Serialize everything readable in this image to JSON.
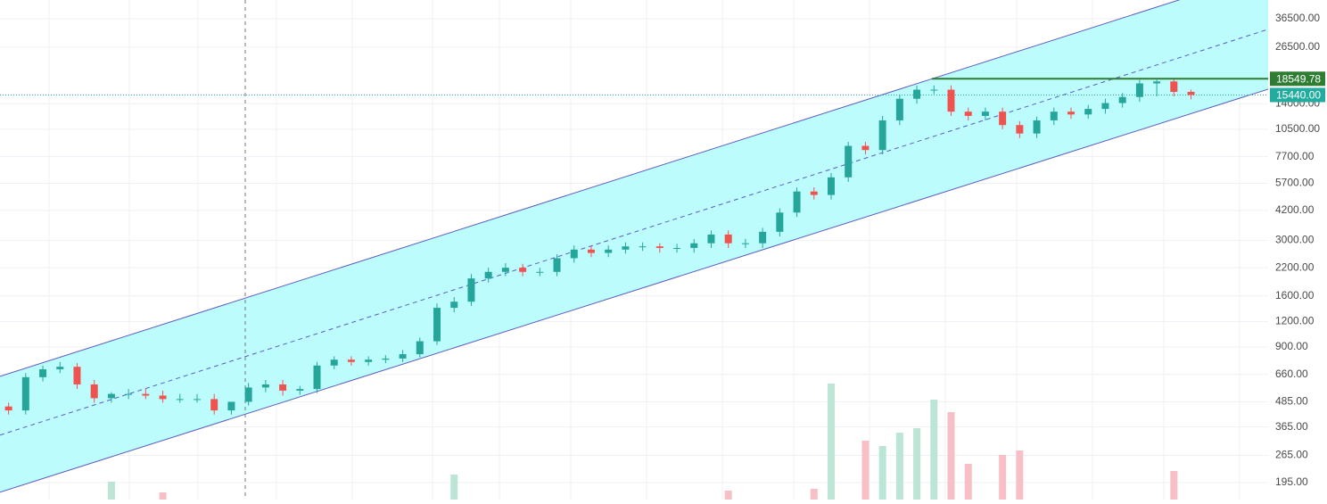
{
  "chart_data": {
    "type": "candlestick",
    "log_y": true,
    "grid": true,
    "xlim": [
      -0.5,
      73.5
    ],
    "ylim": [
      161,
      45100
    ],
    "yticks": [
      {
        "value": 36500,
        "label": "36500.00"
      },
      {
        "value": 26500,
        "label": "26500.00"
      },
      {
        "value": 14000,
        "label": "14000.00"
      },
      {
        "value": 10500,
        "label": "10500.00"
      },
      {
        "value": 7700,
        "label": "7700.00"
      },
      {
        "value": 5700,
        "label": "5700.00"
      },
      {
        "value": 4200,
        "label": "4200.00"
      },
      {
        "value": 3000,
        "label": "3000.00"
      },
      {
        "value": 2200,
        "label": "2200.00"
      },
      {
        "value": 1600,
        "label": "1600.00"
      },
      {
        "value": 1200,
        "label": "1200.00"
      },
      {
        "value": 900,
        "label": "900.00"
      },
      {
        "value": 660,
        "label": "660.00"
      },
      {
        "value": 485,
        "label": "485.00"
      },
      {
        "value": 365,
        "label": "365.00"
      },
      {
        "value": 265,
        "label": "265.00"
      },
      {
        "value": 195,
        "label": "195.00"
      }
    ],
    "up_color": "#26a69a",
    "down_color": "#ef5350",
    "open": [
      460,
      440,
      640,
      700,
      720,
      590,
      505,
      530,
      530,
      520,
      500,
      500,
      500,
      440,
      485,
      570,
      590,
      550,
      560,
      730,
      780,
      760,
      780,
      790,
      830,
      960,
      1400,
      1500,
      1950,
      2100,
      2200,
      2100,
      2100,
      2450,
      2700,
      2600,
      2700,
      2800,
      2800,
      2750,
      2750,
      2900,
      3200,
      2900,
      2900,
      3300,
      4100,
      5200,
      5000,
      6100,
      8700,
      8300,
      11600,
      14800,
      16400,
      16400,
      12800,
      12200,
      12800,
      11000,
      10000,
      11600,
      12800,
      12400,
      13200,
      14100,
      15100,
      17600,
      18000,
      16000
    ],
    "high": [
      480,
      670,
      730,
      760,
      750,
      620,
      540,
      560,
      560,
      550,
      530,
      530,
      530,
      470,
      600,
      620,
      620,
      580,
      760,
      810,
      810,
      810,
      820,
      870,
      1000,
      1470,
      1580,
      2050,
      2200,
      2320,
      2300,
      2200,
      2560,
      2830,
      2830,
      2830,
      2930,
      2930,
      2900,
      2880,
      3040,
      3350,
      3350,
      3050,
      3450,
      4300,
      5450,
      5450,
      6400,
      9100,
      9100,
      12200,
      15500,
      17200,
      17200,
      17200,
      13400,
      13400,
      13400,
      11500,
      12100,
      13400,
      13400,
      13800,
      14800,
      15800,
      18300,
      18500,
      18400,
      16400
    ],
    "low": [
      420,
      420,
      610,
      670,
      560,
      480,
      480,
      500,
      500,
      480,
      480,
      480,
      420,
      420,
      465,
      540,
      520,
      525,
      535,
      700,
      730,
      730,
      750,
      760,
      800,
      920,
      1330,
      1430,
      1860,
      2000,
      2000,
      2000,
      2000,
      2330,
      2480,
      2480,
      2580,
      2660,
      2610,
      2610,
      2610,
      2750,
      2750,
      2750,
      2750,
      3130,
      3900,
      4750,
      4750,
      5800,
      7900,
      7900,
      11000,
      14000,
      15600,
      12200,
      11600,
      11600,
      10500,
      9500,
      9500,
      11000,
      11800,
      11800,
      12500,
      13400,
      14300,
      15200,
      15200,
      14700
    ],
    "close": [
      440,
      640,
      700,
      720,
      590,
      505,
      530,
      530,
      520,
      500,
      500,
      500,
      440,
      485,
      570,
      590,
      550,
      560,
      730,
      780,
      760,
      780,
      790,
      830,
      960,
      1400,
      1500,
      1950,
      2100,
      2200,
      2100,
      2100,
      2450,
      2700,
      2600,
      2700,
      2800,
      2800,
      2750,
      2750,
      2900,
      3200,
      2900,
      2900,
      3300,
      4100,
      5200,
      5000,
      6100,
      8700,
      8300,
      11600,
      14800,
      16400,
      16400,
      12800,
      12200,
      12800,
      11000,
      10000,
      11600,
      12800,
      12400,
      13200,
      14100,
      15100,
      17600,
      18000,
      16000,
      15440
    ],
    "volume": {
      "vlim": [
        0,
        560
      ],
      "up_color": "#bde5d6",
      "down_color": "#f7c0c6",
      "values": [
        null,
        null,
        null,
        null,
        null,
        null,
        20,
        null,
        null,
        8,
        null,
        null,
        null,
        null,
        null,
        null,
        null,
        null,
        null,
        null,
        null,
        null,
        null,
        null,
        null,
        null,
        28,
        null,
        null,
        null,
        null,
        null,
        null,
        null,
        null,
        null,
        null,
        null,
        null,
        null,
        null,
        null,
        10,
        null,
        null,
        null,
        null,
        12,
        130,
        null,
        66,
        60,
        75,
        80,
        112,
        98,
        40,
        null,
        50,
        55,
        null,
        null,
        null,
        null,
        null,
        null,
        null,
        null,
        32,
        null
      ]
    },
    "channel": {
      "color": "#5c5cc4",
      "fill": "#bdfcfd",
      "upper": [
        646,
        62200
      ],
      "middle": [
        333,
        32400
      ],
      "lower": [
        175,
        16500
      ]
    },
    "price_lines": [
      {
        "value": 18549.78,
        "label": "18549.78",
        "color": "#2e7d32"
      },
      {
        "value": 15440,
        "label": "15440.00",
        "color": "#22ab9f"
      }
    ]
  }
}
